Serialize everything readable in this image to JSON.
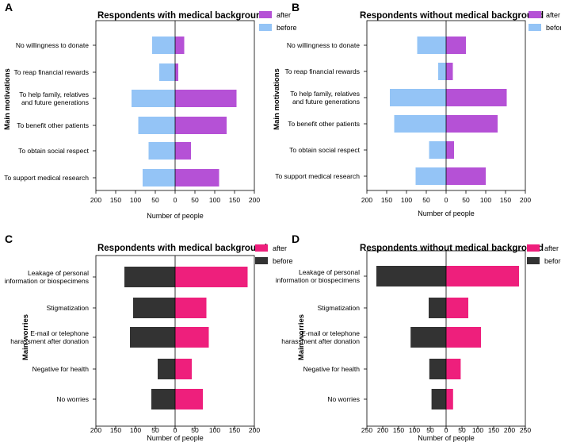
{
  "panels": [
    {
      "id": "A",
      "chart_data": {
        "type": "bar",
        "orientation": "horizontal-butterfly",
        "title": "Respondents with medical background",
        "ylabel": "Main motivations",
        "xlabel": "Number of people",
        "xlim": [
          -200,
          200
        ],
        "xticks": [
          -200,
          -150,
          -100,
          -50,
          0,
          50,
          100,
          150,
          200
        ],
        "xtick_labels": [
          "200",
          "150",
          "100",
          "50",
          "0",
          "50",
          "100",
          "150",
          "200"
        ],
        "categories": [
          [
            "No willingness to donate"
          ],
          [
            "To reap financial rewards"
          ],
          [
            "To help family, relatives",
            "and future generations"
          ],
          [
            "To benefit other patients"
          ],
          [
            "To obtain social respect"
          ],
          [
            "To support medical research"
          ]
        ],
        "series": [
          {
            "name": "after",
            "side": "right",
            "color": "#b551d6",
            "values": [
              23,
              8,
              155,
              130,
              40,
              111
            ]
          },
          {
            "name": "before",
            "side": "left",
            "color": "#94c4f6",
            "values": [
              58,
              40,
              110,
              93,
              67,
              82
            ]
          }
        ],
        "legend": "top-right"
      }
    },
    {
      "id": "B",
      "chart_data": {
        "type": "bar",
        "orientation": "horizontal-butterfly",
        "title": "Respondents without medical background",
        "ylabel": "Main motivations",
        "xlabel": "Number of people",
        "xlim": [
          -200,
          200
        ],
        "xticks": [
          -200,
          -150,
          -100,
          -50,
          0,
          50,
          100,
          150,
          200
        ],
        "xtick_labels": [
          "200",
          "150",
          "100",
          "50",
          "0",
          "50",
          "100",
          "150",
          "200"
        ],
        "categories": [
          [
            "No willingness to donate"
          ],
          [
            "To reap financial rewards"
          ],
          [
            "To help family, relatives",
            "and future generations"
          ],
          [
            "To benefit other patients"
          ],
          [
            "To obtain social respect"
          ],
          [
            "To support medical research"
          ]
        ],
        "series": [
          {
            "name": "after",
            "side": "right",
            "color": "#b551d6",
            "values": [
              50,
              17,
              153,
              130,
              20,
              100
            ]
          },
          {
            "name": "before",
            "side": "left",
            "color": "#94c4f6",
            "values": [
              73,
              20,
              142,
              131,
              43,
              77
            ]
          }
        ],
        "legend": "top-right"
      }
    },
    {
      "id": "C",
      "chart_data": {
        "type": "bar",
        "orientation": "horizontal-butterfly",
        "title": "Respondents with medical background",
        "ylabel": "Main worries",
        "xlabel": "Number of people",
        "xlim": [
          -200,
          200
        ],
        "xticks": [
          -200,
          -150,
          -100,
          -50,
          0,
          50,
          100,
          150,
          200
        ],
        "xtick_labels": [
          "200",
          "150",
          "100",
          "50",
          "0",
          "50",
          "100",
          "150",
          "200"
        ],
        "categories": [
          [
            "Leakage of personal",
            "information or biospecimens"
          ],
          [
            "Stigmatization"
          ],
          [
            "E-mail or telephone",
            "harassment after donation"
          ],
          [
            "Negative for health"
          ],
          [
            "No worries"
          ]
        ],
        "series": [
          {
            "name": "after",
            "side": "right",
            "color": "#ee1f7c",
            "values": [
              183,
              79,
              85,
              42,
              70
            ]
          },
          {
            "name": "before",
            "side": "left",
            "color": "#333333",
            "values": [
              128,
              106,
              114,
              44,
              60
            ]
          }
        ],
        "legend": "top-right"
      }
    },
    {
      "id": "D",
      "chart_data": {
        "type": "bar",
        "orientation": "horizontal-butterfly",
        "title": "Respondents without medical background",
        "ylabel": "Main worries",
        "xlabel": "Number of people",
        "xlim": [
          -250,
          250
        ],
        "xticks": [
          -250,
          -200,
          -150,
          -100,
          -50,
          0,
          50,
          100,
          150,
          200,
          250
        ],
        "xtick_labels": [
          "250",
          "200",
          "150",
          "100",
          "50",
          "0",
          "50",
          "100",
          "150",
          "200",
          "250"
        ],
        "categories": [
          [
            "Leakage of personal",
            "information or biospecimens"
          ],
          [
            "Stigmatization"
          ],
          [
            "E-mail or telephone",
            "harassment after donation"
          ],
          [
            "Negative for health"
          ],
          [
            "No worries"
          ]
        ],
        "series": [
          {
            "name": "after",
            "side": "right",
            "color": "#ee1f7c",
            "values": [
              230,
              70,
              110,
              46,
              22
            ]
          },
          {
            "name": "before",
            "side": "left",
            "color": "#333333",
            "values": [
              220,
              55,
              112,
              53,
              46
            ]
          }
        ],
        "legend": "top-right"
      }
    }
  ]
}
